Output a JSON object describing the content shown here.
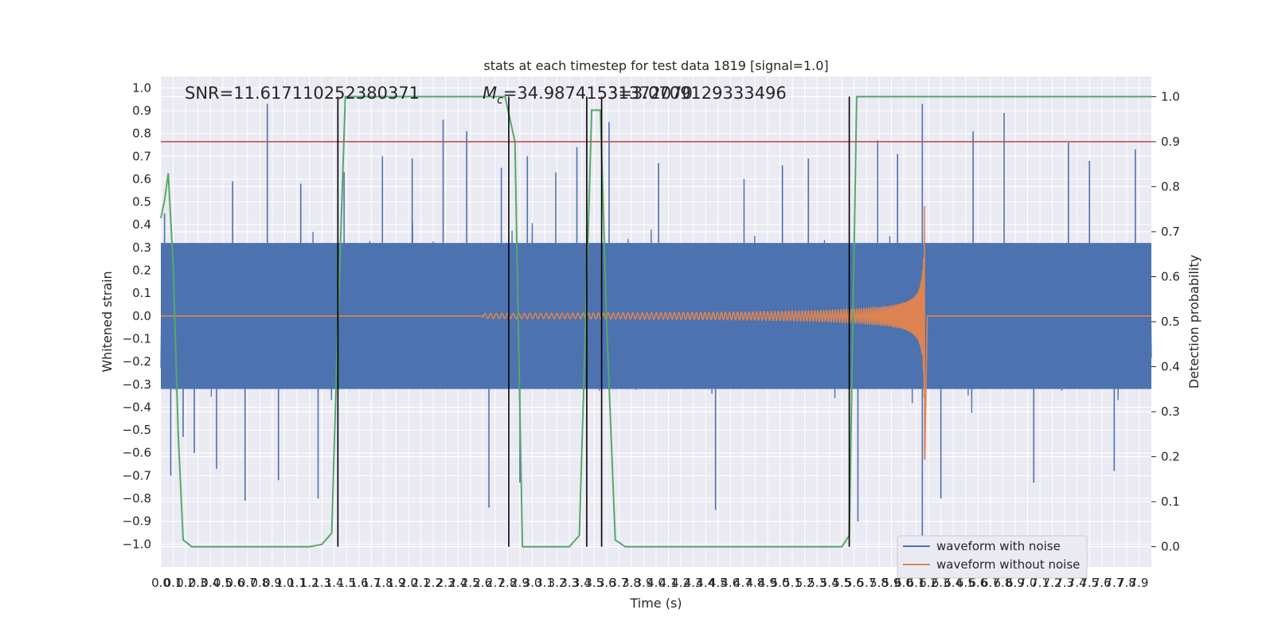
{
  "chart_data": {
    "type": "line",
    "title": "stats at each timestep for test data 1819 [signal=1.0]",
    "xlabel": "Time (s)",
    "ylabel": "Whitened strain",
    "y2label": "Detection probability",
    "xlim": [
      0.0,
      8.0
    ],
    "ylim": [
      -1.1,
      1.05
    ],
    "y2lim": [
      -0.045,
      1.045
    ],
    "x_ticks_step": 0.1,
    "x_ticks_count": 80,
    "y_ticks": [
      -1.0,
      -0.9,
      -0.8,
      -0.7,
      -0.6,
      -0.5,
      -0.4,
      -0.3,
      -0.2,
      -0.1,
      0.0,
      0.1,
      0.2,
      0.3,
      0.4,
      0.5,
      0.6,
      0.7,
      0.8,
      0.9,
      1.0
    ],
    "y2_ticks": [
      0.0,
      0.1,
      0.2,
      0.3,
      0.4,
      0.5,
      0.6,
      0.7,
      0.8,
      0.9,
      1.0
    ],
    "annotations": {
      "snr": "SNR=11.617110252380371",
      "mc_symbol": "M",
      "mc_sub": "c",
      "mc_value": "=34.98741531372070",
      "overlap": "3=3.0709129333496"
    },
    "threshold_y2": 0.9,
    "vertical_lines_x": [
      1.43,
      2.81,
      3.44,
      3.56,
      5.56
    ],
    "series": [
      {
        "name": "waveform with noise",
        "color": "#4c72b0",
        "axis": "left",
        "envelope_band": [
          -0.4,
          0.4
        ],
        "spikes": [
          {
            "x": 0.03,
            "y": 0.45
          },
          {
            "x": 0.08,
            "y": -0.7
          },
          {
            "x": 0.18,
            "y": -0.53
          },
          {
            "x": 0.27,
            "y": -0.6
          },
          {
            "x": 0.45,
            "y": -0.67
          },
          {
            "x": 0.58,
            "y": 0.59
          },
          {
            "x": 0.68,
            "y": -0.81
          },
          {
            "x": 0.86,
            "y": 0.93
          },
          {
            "x": 0.95,
            "y": -0.72
          },
          {
            "x": 1.13,
            "y": 0.58
          },
          {
            "x": 1.27,
            "y": -0.8
          },
          {
            "x": 1.48,
            "y": 0.63
          },
          {
            "x": 1.79,
            "y": 0.7
          },
          {
            "x": 2.03,
            "y": 0.69
          },
          {
            "x": 2.28,
            "y": 0.86
          },
          {
            "x": 2.47,
            "y": 0.81
          },
          {
            "x": 2.65,
            "y": -0.84
          },
          {
            "x": 2.75,
            "y": 0.65
          },
          {
            "x": 2.9,
            "y": -0.73
          },
          {
            "x": 2.96,
            "y": 0.7
          },
          {
            "x": 3.19,
            "y": 0.63
          },
          {
            "x": 3.36,
            "y": 0.74
          },
          {
            "x": 3.62,
            "y": 0.85
          },
          {
            "x": 4.02,
            "y": 0.67
          },
          {
            "x": 4.48,
            "y": -0.85
          },
          {
            "x": 4.71,
            "y": 0.6
          },
          {
            "x": 5.02,
            "y": 0.66
          },
          {
            "x": 5.23,
            "y": 0.69
          },
          {
            "x": 5.63,
            "y": -0.9
          },
          {
            "x": 5.79,
            "y": 0.77
          },
          {
            "x": 5.95,
            "y": 0.71
          },
          {
            "x": 6.15,
            "y": 0.93
          },
          {
            "x": 6.15,
            "y": -1.05
          },
          {
            "x": 6.3,
            "y": -0.8
          },
          {
            "x": 6.56,
            "y": 0.81
          },
          {
            "x": 6.81,
            "y": 0.89
          },
          {
            "x": 7.05,
            "y": -0.73
          },
          {
            "x": 7.33,
            "y": 0.76
          },
          {
            "x": 7.5,
            "y": 0.68
          },
          {
            "x": 7.7,
            "y": -0.68
          },
          {
            "x": 7.87,
            "y": 0.73
          }
        ]
      },
      {
        "name": "waveform without noise",
        "color": "#dd8452",
        "axis": "left",
        "chirp_start": 2.6,
        "merger_time": 6.17,
        "peak_amplitude": 0.63
      },
      {
        "name": "detection probability",
        "color": "#55a868",
        "axis": "right",
        "x": [
          0.0,
          0.03,
          0.06,
          0.1,
          0.14,
          0.18,
          0.25,
          0.5,
          1.0,
          1.2,
          1.3,
          1.38,
          1.43,
          1.49,
          1.6,
          2.0,
          2.5,
          2.78,
          2.82,
          2.86,
          2.92,
          3.0,
          3.3,
          3.38,
          3.43,
          3.48,
          3.55,
          3.6,
          3.67,
          3.75,
          4.0,
          5.0,
          5.5,
          5.56,
          5.62,
          5.7,
          6.0,
          7.0,
          8.0
        ],
        "y": [
          0.73,
          0.77,
          0.83,
          0.62,
          0.25,
          0.015,
          0.0,
          0.0,
          0.0,
          0.0,
          0.005,
          0.03,
          0.5,
          1.0,
          1.0,
          1.0,
          1.0,
          1.0,
          0.95,
          0.9,
          0.0,
          0.0,
          0.0,
          0.025,
          0.5,
          0.97,
          0.97,
          0.5,
          0.015,
          0.0,
          0.0,
          0.0,
          0.0,
          0.025,
          1.0,
          1.0,
          1.0,
          1.0,
          1.0
        ]
      },
      {
        "name": "threshold",
        "color": "#c44e52",
        "axis": "right"
      }
    ],
    "legend": {
      "location": "lower-right",
      "entries": [
        {
          "label": "waveform with noise",
          "color": "#4c72b0"
        },
        {
          "label": "waveform without noise",
          "color": "#dd8452"
        }
      ]
    }
  }
}
